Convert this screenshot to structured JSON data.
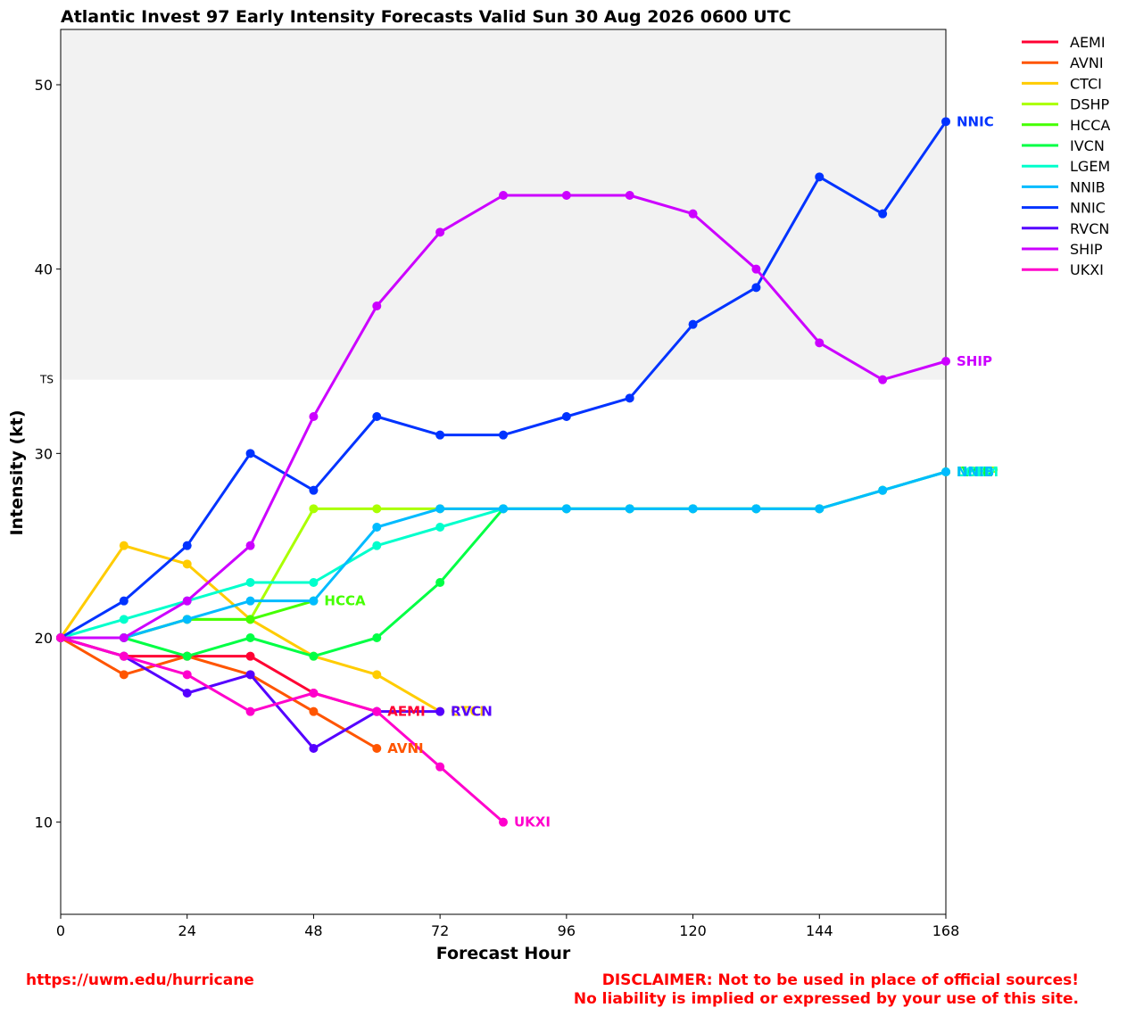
{
  "title": "Atlantic Invest 97 Early Intensity Forecasts Valid Sun 30 Aug 2026 0600 UTC",
  "footer": {
    "url": "https://uwm.edu/hurricane",
    "disclaimer_line1": "DISCLAIMER: Not to be used in place of official sources!",
    "disclaimer_line2": "No liability is implied or expressed by your use of this site."
  },
  "chart_data": {
    "type": "line",
    "title": "Atlantic Invest 97 Early Intensity Forecasts Valid Sun 30 Aug 2026 0600 UTC",
    "xlabel": "Forecast Hour",
    "ylabel": "Intensity (kt)",
    "xlim": [
      0,
      168
    ],
    "ylim": [
      5,
      53
    ],
    "xticks": [
      0,
      24,
      48,
      72,
      96,
      120,
      144,
      168
    ],
    "yticks": [
      10,
      20,
      30,
      40,
      50
    ],
    "ts_threshold": {
      "value": 34,
      "label": "TS",
      "shade_color": "#f2f2f2"
    },
    "grid": false,
    "legend_position": "top-right outside",
    "series": [
      {
        "name": "AEMI",
        "color": "#ff0033",
        "x": [
          0,
          12,
          24,
          36,
          48,
          60
        ],
        "y": [
          20,
          19,
          19,
          19,
          17,
          16
        ],
        "end_label": "AEMI"
      },
      {
        "name": "AVNI",
        "color": "#ff5500",
        "x": [
          0,
          12,
          24,
          36,
          48,
          60
        ],
        "y": [
          20,
          18,
          19,
          18,
          16,
          14
        ],
        "end_label": "AVNI"
      },
      {
        "name": "CTCI",
        "color": "#ffcc00",
        "x": [
          0,
          12,
          24,
          36,
          48,
          60,
          72
        ],
        "y": [
          20,
          25,
          24,
          21,
          19,
          18,
          16
        ],
        "end_label": "CTCI"
      },
      {
        "name": "DSHP",
        "color": "#aaff00",
        "x": [
          0,
          12,
          24,
          36,
          48,
          60,
          72,
          84,
          96,
          108,
          120,
          132,
          144,
          156,
          168
        ],
        "y": [
          20,
          20,
          21,
          21,
          27,
          27,
          27,
          27,
          27,
          27,
          27,
          27,
          27,
          28,
          29
        ],
        "end_label": "DSHP"
      },
      {
        "name": "HCCA",
        "color": "#44ff00",
        "x": [
          0,
          12,
          24,
          36,
          48
        ],
        "y": [
          20,
          20,
          21,
          21,
          22
        ],
        "end_label": "HCCA"
      },
      {
        "name": "IVCN",
        "color": "#00ff44",
        "x": [
          0,
          12,
          24,
          36,
          48,
          60,
          72,
          84,
          96,
          108,
          120,
          132,
          144,
          156,
          168
        ],
        "y": [
          20,
          20,
          19,
          20,
          19,
          20,
          23,
          27,
          27,
          27,
          27,
          27,
          27,
          28,
          29
        ],
        "end_label": "IVCN"
      },
      {
        "name": "LGEM",
        "color": "#00ffcc",
        "x": [
          0,
          12,
          24,
          36,
          48,
          60,
          72,
          84,
          96,
          108,
          120,
          132,
          144,
          156,
          168
        ],
        "y": [
          20,
          21,
          22,
          23,
          23,
          25,
          26,
          27,
          27,
          27,
          27,
          27,
          27,
          28,
          29
        ],
        "end_label": "LGEM"
      },
      {
        "name": "NNIB",
        "color": "#00bbff",
        "x": [
          0,
          12,
          24,
          36,
          48,
          60,
          72,
          84,
          96,
          108,
          120,
          132,
          144,
          156,
          168
        ],
        "y": [
          20,
          20,
          21,
          22,
          22,
          26,
          27,
          27,
          27,
          27,
          27,
          27,
          27,
          28,
          29
        ],
        "end_label": "NNIB"
      },
      {
        "name": "NNIC",
        "color": "#0033ff",
        "x": [
          0,
          12,
          24,
          36,
          48,
          60,
          72,
          84,
          96,
          108,
          120,
          132,
          144,
          156,
          168
        ],
        "y": [
          20,
          22,
          25,
          30,
          28,
          32,
          31,
          31,
          32,
          33,
          37,
          39,
          45,
          43,
          48
        ],
        "end_label": "NNIC"
      },
      {
        "name": "RVCN",
        "color": "#5500ff",
        "x": [
          0,
          12,
          24,
          36,
          48,
          60,
          72
        ],
        "y": [
          20,
          19,
          17,
          18,
          14,
          16,
          16
        ],
        "end_label": "RVCN"
      },
      {
        "name": "SHIP",
        "color": "#cc00ff",
        "x": [
          0,
          12,
          24,
          36,
          48,
          60,
          72,
          84,
          96,
          108,
          120,
          132,
          144,
          156,
          168
        ],
        "y": [
          20,
          20,
          22,
          25,
          32,
          38,
          42,
          44,
          44,
          44,
          43,
          40,
          36,
          34,
          35
        ],
        "end_label": "SHIP"
      },
      {
        "name": "UKXI",
        "color": "#ff00cc",
        "x": [
          0,
          12,
          24,
          36,
          48,
          60,
          72,
          84
        ],
        "y": [
          20,
          19,
          18,
          16,
          17,
          16,
          13,
          10
        ],
        "end_label": "UKXI"
      }
    ]
  }
}
